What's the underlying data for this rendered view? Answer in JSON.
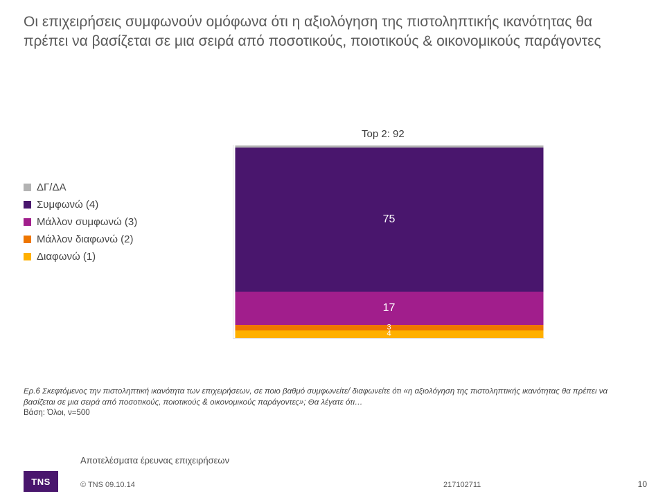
{
  "title": "Οι επιχειρήσεις συμφωνούν ομόφωνα ότι η αξιολόγηση της πιστοληπτικής ικανότητας θα πρέπει να βασίζεται σε μια σειρά από ποσοτικούς, ποιοτικούς & οικονομικούς παράγοντες",
  "chart": {
    "type": "stacked-bar",
    "top2_label": "Top 2: 92",
    "background_color": "#ffffff",
    "bar_width_pct": 99,
    "legend": [
      {
        "label": "ΔΓ/ΔΑ",
        "color": "#b3b3b3"
      },
      {
        "label": "Συμφωνώ (4)",
        "color": "#49166d"
      },
      {
        "label": "Μάλλον συμφωνώ (3)",
        "color": "#a11e8c"
      },
      {
        "label": "Μάλλον διαφωνώ (2)",
        "color": "#ee7600"
      },
      {
        "label": "Διαφωνώ (1)",
        "color": "#ffb000"
      }
    ],
    "segments": [
      {
        "key": "dgda",
        "value": 1,
        "color": "#b3b3b3",
        "show_label": false
      },
      {
        "key": "agree4",
        "value": 75,
        "color": "#49166d",
        "show_label": true
      },
      {
        "key": "agree3",
        "value": 17,
        "color": "#a11e8c",
        "show_label": true
      },
      {
        "key": "dis2",
        "value": 3,
        "color": "#ee7600",
        "show_label": true
      },
      {
        "key": "dis1",
        "value": 4,
        "color": "#ffb000",
        "show_label": true
      }
    ],
    "total": 100,
    "value_font_color": "#ffffff",
    "value_font_size": 16
  },
  "footnote": {
    "line1": "Ερ.6 Σκεφτόμενος την πιστοληπτική ικανότητα των επιχειρήσεων, σε ποιο βαθμό συμφωνείτε/ διαφωνείτε ότι «η αξιολόγηση της πιστοληπτικής ικανότητας θα πρέπει να βασίζεται σε μια σειρά από ποσοτικούς, ποιοτικούς & οικονομικούς παράγοντες»; Θα λέγατε ότι…",
    "base": "Βάση: Όλοι, ν=500"
  },
  "footer": {
    "subtitle": "Αποτελέσματα έρευνας επιχειρήσεων",
    "logo": "TNS",
    "copyright": "© TNS  09.10.14",
    "code": "217102711",
    "page": "10"
  }
}
